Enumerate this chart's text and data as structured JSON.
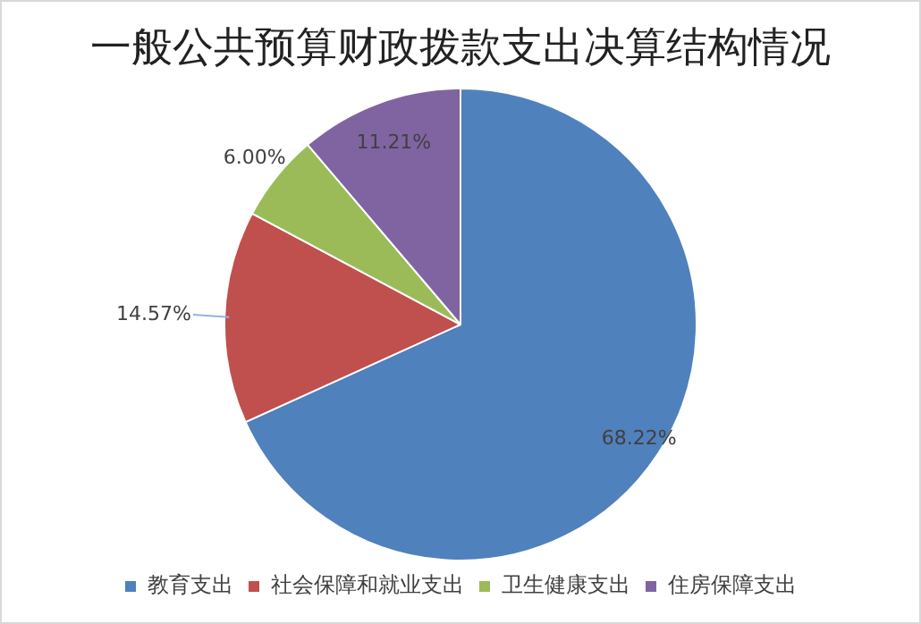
{
  "chart_data": {
    "type": "pie",
    "title": "一般公共预算财政拨款支出决算结构情况",
    "categories": [
      "教育支出",
      "社会保障和就业支出",
      "卫生健康支出",
      "住房保障支出"
    ],
    "values": [
      68.22,
      14.57,
      6.0,
      11.21
    ],
    "colors": [
      "#4f81bd",
      "#c0504d",
      "#9bbb59",
      "#8064a2"
    ],
    "value_labels": [
      "68.22%",
      "14.57%",
      "6.00%",
      "11.21%"
    ],
    "legend": "bottom"
  }
}
